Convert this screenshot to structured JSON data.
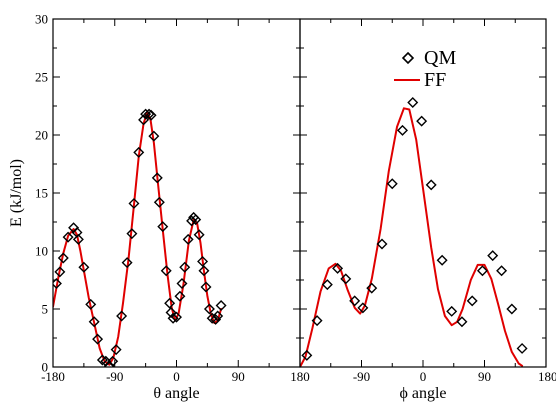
{
  "chart_data": [
    {
      "type": "scatter",
      "panel": "left",
      "xlabel": "θ angle",
      "ylabel": "E (kJ/mol)",
      "xlim": [
        -180,
        180
      ],
      "ylim": [
        0,
        30
      ],
      "x_ticks": [
        -180,
        -90,
        0,
        90,
        180
      ],
      "x_tick_labels": [
        "-180",
        "-90",
        "0",
        "90",
        "180"
      ],
      "y_ticks": [
        0,
        5,
        10,
        15,
        20,
        25,
        30
      ],
      "grid": false,
      "series": [
        {
          "name": "QM",
          "marker": "diamond",
          "color": "#000000",
          "points": [
            {
              "x": -175,
              "y": 7.2
            },
            {
              "x": -170,
              "y": 8.2
            },
            {
              "x": -165,
              "y": 9.4
            },
            {
              "x": -158,
              "y": 11.2
            },
            {
              "x": -150,
              "y": 12.0
            },
            {
              "x": -145,
              "y": 11.6
            },
            {
              "x": -143,
              "y": 11.0
            },
            {
              "x": -135,
              "y": 8.6
            },
            {
              "x": -125,
              "y": 5.4
            },
            {
              "x": -120,
              "y": 3.9
            },
            {
              "x": -115,
              "y": 2.4
            },
            {
              "x": -108,
              "y": 0.6
            },
            {
              "x": -103,
              "y": 0.5
            },
            {
              "x": -98,
              "y": 0.1
            },
            {
              "x": -93,
              "y": 0.5
            },
            {
              "x": -88,
              "y": 1.5
            },
            {
              "x": -80,
              "y": 4.4
            },
            {
              "x": -72,
              "y": 9.0
            },
            {
              "x": -65,
              "y": 11.5
            },
            {
              "x": -62,
              "y": 14.1
            },
            {
              "x": -55,
              "y": 18.5
            },
            {
              "x": -48,
              "y": 21.3
            },
            {
              "x": -45,
              "y": 21.8
            },
            {
              "x": -40,
              "y": 21.8
            },
            {
              "x": -37,
              "y": 21.7
            },
            {
              "x": -33,
              "y": 19.9
            },
            {
              "x": -28,
              "y": 16.3
            },
            {
              "x": -25,
              "y": 14.2
            },
            {
              "x": -20,
              "y": 12.1
            },
            {
              "x": -15,
              "y": 8.3
            },
            {
              "x": -10,
              "y": 5.5
            },
            {
              "x": -8,
              "y": 4.7
            },
            {
              "x": -5,
              "y": 4.2
            },
            {
              "x": 0,
              "y": 4.3
            },
            {
              "x": 5,
              "y": 6.1
            },
            {
              "x": 8,
              "y": 7.2
            },
            {
              "x": 12,
              "y": 8.6
            },
            {
              "x": 17,
              "y": 11.0
            },
            {
              "x": 22,
              "y": 12.6
            },
            {
              "x": 25,
              "y": 12.9
            },
            {
              "x": 28,
              "y": 12.7
            },
            {
              "x": 33,
              "y": 11.4
            },
            {
              "x": 38,
              "y": 9.1
            },
            {
              "x": 40,
              "y": 8.3
            },
            {
              "x": 43,
              "y": 6.9
            },
            {
              "x": 48,
              "y": 5.0
            },
            {
              "x": 52,
              "y": 4.2
            },
            {
              "x": 57,
              "y": 4.1
            },
            {
              "x": 60,
              "y": 4.4
            },
            {
              "x": 65,
              "y": 5.3
            }
          ]
        },
        {
          "name": "FF",
          "marker": "line",
          "color": "#e00000",
          "points": [
            {
              "x": -180,
              "y": 5.2
            },
            {
              "x": -172,
              "y": 7.8
            },
            {
              "x": -165,
              "y": 9.8
            },
            {
              "x": -158,
              "y": 11.3
            },
            {
              "x": -150,
              "y": 11.9
            },
            {
              "x": -145,
              "y": 11.4
            },
            {
              "x": -140,
              "y": 10.0
            },
            {
              "x": -135,
              "y": 8.3
            },
            {
              "x": -128,
              "y": 6.0
            },
            {
              "x": -120,
              "y": 3.8
            },
            {
              "x": -112,
              "y": 1.6
            },
            {
              "x": -105,
              "y": 0.5
            },
            {
              "x": -98,
              "y": 0.2
            },
            {
              "x": -92,
              "y": 0.8
            },
            {
              "x": -85,
              "y": 2.6
            },
            {
              "x": -78,
              "y": 5.5
            },
            {
              "x": -70,
              "y": 9.3
            },
            {
              "x": -62,
              "y": 14.0
            },
            {
              "x": -55,
              "y": 18.2
            },
            {
              "x": -48,
              "y": 21.0
            },
            {
              "x": -43,
              "y": 21.9
            },
            {
              "x": -38,
              "y": 21.4
            },
            {
              "x": -33,
              "y": 19.3
            },
            {
              "x": -27,
              "y": 15.8
            },
            {
              "x": -20,
              "y": 11.8
            },
            {
              "x": -13,
              "y": 7.9
            },
            {
              "x": -7,
              "y": 5.1
            },
            {
              "x": -2,
              "y": 4.0
            },
            {
              "x": 3,
              "y": 4.6
            },
            {
              "x": 10,
              "y": 7.1
            },
            {
              "x": 18,
              "y": 10.9
            },
            {
              "x": 25,
              "y": 12.7
            },
            {
              "x": 30,
              "y": 12.4
            },
            {
              "x": 35,
              "y": 10.7
            },
            {
              "x": 40,
              "y": 8.3
            },
            {
              "x": 45,
              "y": 6.1
            },
            {
              "x": 50,
              "y": 4.6
            },
            {
              "x": 55,
              "y": 3.8
            },
            {
              "x": 60,
              "y": 4.0
            },
            {
              "x": 65,
              "y": 5.0
            }
          ]
        }
      ]
    },
    {
      "type": "scatter",
      "panel": "right",
      "xlabel": "ϕ angle",
      "ylabel": "",
      "xlim": [
        -180,
        180
      ],
      "ylim": [
        0,
        30
      ],
      "x_ticks": [
        -180,
        -90,
        0,
        90,
        180
      ],
      "x_tick_labels": [
        "",
        "-90",
        "0",
        "90",
        "180"
      ],
      "grid": false,
      "legend": {
        "position": "top-right",
        "entries": [
          "QM",
          "FF"
        ]
      },
      "series": [
        {
          "name": "QM",
          "marker": "diamond",
          "color": "#000000",
          "points": [
            {
              "x": -170,
              "y": 1.0
            },
            {
              "x": -155,
              "y": 4.0
            },
            {
              "x": -140,
              "y": 7.1
            },
            {
              "x": -125,
              "y": 8.5
            },
            {
              "x": -113,
              "y": 7.6
            },
            {
              "x": -100,
              "y": 5.7
            },
            {
              "x": -88,
              "y": 5.1
            },
            {
              "x": -75,
              "y": 6.8
            },
            {
              "x": -60,
              "y": 10.6
            },
            {
              "x": -45,
              "y": 15.8
            },
            {
              "x": -30,
              "y": 20.4
            },
            {
              "x": -15,
              "y": 22.8
            },
            {
              "x": -2,
              "y": 21.2
            },
            {
              "x": 12,
              "y": 15.7
            },
            {
              "x": 28,
              "y": 9.2
            },
            {
              "x": 42,
              "y": 4.8
            },
            {
              "x": 57,
              "y": 3.9
            },
            {
              "x": 72,
              "y": 5.7
            },
            {
              "x": 87,
              "y": 8.3
            },
            {
              "x": 102,
              "y": 9.6
            },
            {
              "x": 115,
              "y": 8.3
            },
            {
              "x": 130,
              "y": 5.0
            },
            {
              "x": 145,
              "y": 1.6
            }
          ]
        },
        {
          "name": "FF",
          "marker": "line",
          "color": "#e00000",
          "points": [
            {
              "x": -180,
              "y": 0.0
            },
            {
              "x": -172,
              "y": 0.9
            },
            {
              "x": -162,
              "y": 3.3
            },
            {
              "x": -150,
              "y": 6.5
            },
            {
              "x": -138,
              "y": 8.5
            },
            {
              "x": -128,
              "y": 8.9
            },
            {
              "x": -120,
              "y": 8.3
            },
            {
              "x": -110,
              "y": 6.6
            },
            {
              "x": -100,
              "y": 5.1
            },
            {
              "x": -92,
              "y": 4.6
            },
            {
              "x": -85,
              "y": 5.3
            },
            {
              "x": -75,
              "y": 7.6
            },
            {
              "x": -62,
              "y": 11.9
            },
            {
              "x": -50,
              "y": 16.9
            },
            {
              "x": -38,
              "y": 20.7
            },
            {
              "x": -28,
              "y": 22.3
            },
            {
              "x": -20,
              "y": 22.2
            },
            {
              "x": -10,
              "y": 19.6
            },
            {
              "x": 0,
              "y": 15.4
            },
            {
              "x": 12,
              "y": 10.3
            },
            {
              "x": 22,
              "y": 6.7
            },
            {
              "x": 32,
              "y": 4.4
            },
            {
              "x": 42,
              "y": 3.6
            },
            {
              "x": 50,
              "y": 3.9
            },
            {
              "x": 58,
              "y": 5.0
            },
            {
              "x": 70,
              "y": 7.5
            },
            {
              "x": 80,
              "y": 8.8
            },
            {
              "x": 90,
              "y": 8.8
            },
            {
              "x": 100,
              "y": 7.6
            },
            {
              "x": 110,
              "y": 5.4
            },
            {
              "x": 120,
              "y": 3.1
            },
            {
              "x": 130,
              "y": 1.3
            },
            {
              "x": 140,
              "y": 0.3
            },
            {
              "x": 145,
              "y": 0.1
            }
          ]
        }
      ]
    }
  ]
}
